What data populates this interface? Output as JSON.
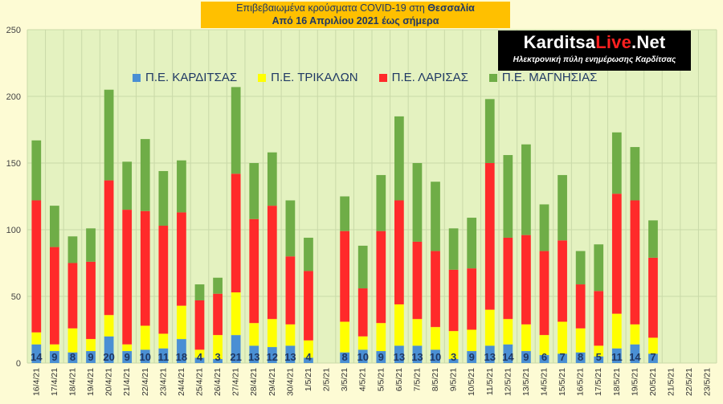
{
  "header": {
    "title_line1": "Επιβεβαιωμένα κρούσματα COVID-19 στη",
    "title_line1_bold": "Θεσσαλία",
    "title_line2": "Από 16 Απριλίου 2021 έως σήμερα"
  },
  "logo": {
    "name_part1": "Karditsa",
    "name_part2": "Live",
    "name_part3": ".Net",
    "tagline": "Ηλεκτρονική πύλη ενημέρωσης Καρδίτσας"
  },
  "colors": {
    "karditsa": "#4a8fd4",
    "trikala": "#ffff00",
    "larisa": "#ff2a2a",
    "magnisia": "#6fad47"
  },
  "chart_data": {
    "type": "bar",
    "stacked": true,
    "grid": true,
    "legend_position": "top",
    "ylim": [
      0,
      250
    ],
    "yticks": [
      0,
      50,
      100,
      150,
      200,
      250
    ],
    "categories": [
      "16/4/21",
      "17/4/21",
      "18/4/21",
      "19/4/21",
      "20/4/21",
      "21/4/21",
      "22/4/21",
      "23/4/21",
      "24/4/21",
      "25/4/21",
      "26/4/21",
      "27/4/21",
      "28/4/21",
      "29/4/21",
      "30/4/21",
      "1/5/21",
      "2/5/21",
      "3/5/21",
      "4/5/21",
      "5/5/21",
      "6/5/21",
      "7/5/21",
      "8/5/21",
      "9/5/21",
      "10/5/21",
      "11/5/21",
      "12/5/21",
      "13/5/21",
      "14/5/21",
      "15/5/21",
      "16/5/21",
      "17/5/21",
      "18/5/21",
      "19/5/21",
      "20/5/21",
      "21/5/21",
      "22/5/21",
      "23/5/21"
    ],
    "series": [
      {
        "name": "Π.Ε. ΚΑΡΔΙΤΣΑΣ",
        "values": [
          14,
          9,
          8,
          9,
          20,
          9,
          10,
          11,
          18,
          4,
          3,
          21,
          13,
          12,
          13,
          4,
          null,
          8,
          10,
          9,
          13,
          13,
          10,
          3,
          9,
          13,
          14,
          9,
          6,
          7,
          8,
          5,
          11,
          14,
          7,
          null,
          null,
          null
        ]
      },
      {
        "name": "Π.Ε. ΤΡΙΚΑΛΩΝ",
        "values": [
          9,
          5,
          18,
          9,
          16,
          5,
          18,
          11,
          25,
          6,
          18,
          32,
          17,
          21,
          16,
          13,
          null,
          23,
          10,
          21,
          31,
          20,
          17,
          21,
          16,
          27,
          19,
          20,
          15,
          24,
          18,
          8,
          26,
          15,
          12,
          null,
          null,
          null
        ]
      },
      {
        "name": "Π.Ε. ΛΑΡΙΣΑΣ",
        "values": [
          99,
          73,
          49,
          58,
          101,
          101,
          86,
          81,
          70,
          37,
          31,
          89,
          78,
          85,
          51,
          52,
          null,
          68,
          36,
          69,
          78,
          58,
          57,
          46,
          46,
          110,
          61,
          67,
          63,
          61,
          33,
          41,
          90,
          93,
          60,
          null,
          null,
          null
        ]
      },
      {
        "name": "Π.Ε. ΜΑΓΝΗΣΙΑΣ",
        "values": [
          45,
          31,
          20,
          25,
          68,
          36,
          54,
          41,
          39,
          12,
          12,
          65,
          42,
          40,
          42,
          25,
          null,
          26,
          32,
          42,
          63,
          59,
          52,
          31,
          38,
          48,
          62,
          68,
          35,
          49,
          25,
          35,
          46,
          40,
          28,
          null,
          null,
          null
        ]
      }
    ],
    "data_labels_series": "Π.Ε. ΚΑΡΔΙΤΣΑΣ"
  }
}
